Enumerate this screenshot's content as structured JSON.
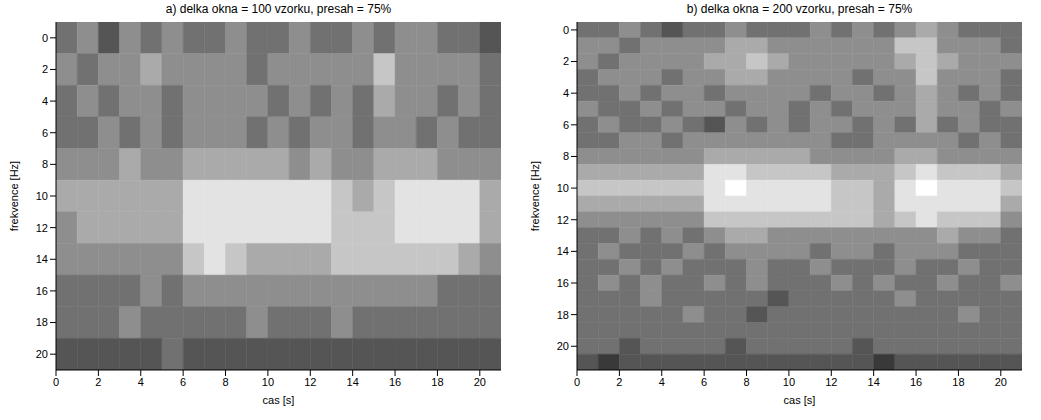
{
  "chart_data": [
    {
      "type": "heatmap",
      "title": "a) delka okna = 100 vzorku, presah = 75%",
      "x_label": "cas [s]",
      "y_label": "frekvence [Hz]",
      "xlim": [
        0,
        21
      ],
      "xticks": [
        0,
        2,
        4,
        6,
        8,
        10,
        12,
        14,
        16,
        18,
        20
      ],
      "ylim": [
        -1,
        21
      ],
      "yticks": [
        0,
        2,
        4,
        6,
        8,
        10,
        12,
        14,
        16,
        18,
        20
      ],
      "zlim": [
        0,
        9
      ],
      "x": [
        0.5,
        1.5,
        2.5,
        3.5,
        4.5,
        5.5,
        6.5,
        7.5,
        8.5,
        9.5,
        10.5,
        11.5,
        12.5,
        13.5,
        14.5,
        15.5,
        16.5,
        17.5,
        18.5,
        19.5,
        20.5
      ],
      "y": [
        0,
        2,
        4,
        6,
        8,
        10,
        12,
        14,
        16,
        18,
        20
      ],
      "cells": [
        [
          4,
          5,
          3,
          5,
          4,
          5,
          4,
          4,
          5,
          4,
          4,
          5,
          4,
          4,
          5,
          4,
          5,
          5,
          4,
          4,
          3
        ],
        [
          5,
          4,
          5,
          5,
          6,
          5,
          5,
          5,
          5,
          4,
          5,
          5,
          5,
          5,
          5,
          7,
          5,
          5,
          5,
          5,
          4
        ],
        [
          4,
          5,
          4,
          5,
          5,
          4,
          5,
          5,
          5,
          5,
          4,
          5,
          4,
          5,
          4,
          6,
          5,
          5,
          4,
          5,
          4
        ],
        [
          4,
          4,
          5,
          4,
          5,
          4,
          5,
          5,
          5,
          4,
          5,
          4,
          5,
          5,
          4,
          5,
          5,
          4,
          5,
          4,
          4
        ],
        [
          5,
          5,
          5,
          6,
          5,
          5,
          6,
          6,
          6,
          6,
          6,
          5,
          6,
          5,
          5,
          6,
          6,
          6,
          5,
          5,
          5
        ],
        [
          6,
          6,
          6,
          6,
          6,
          6,
          8,
          8,
          8,
          8,
          8,
          8,
          8,
          7,
          6,
          7,
          8,
          8,
          8,
          8,
          6
        ],
        [
          5,
          6,
          6,
          6,
          6,
          6,
          8,
          8,
          8,
          8,
          8,
          8,
          8,
          7,
          7,
          7,
          8,
          8,
          8,
          8,
          6
        ],
        [
          5,
          5,
          5,
          5,
          5,
          5,
          7,
          8,
          7,
          6,
          6,
          6,
          6,
          7,
          7,
          7,
          7,
          7,
          7,
          6,
          5
        ],
        [
          4,
          4,
          4,
          4,
          5,
          4,
          5,
          5,
          5,
          5,
          5,
          5,
          5,
          5,
          5,
          5,
          5,
          5,
          4,
          4,
          4
        ],
        [
          4,
          4,
          4,
          5,
          4,
          4,
          4,
          4,
          4,
          5,
          4,
          4,
          4,
          5,
          4,
          4,
          4,
          4,
          4,
          4,
          4
        ],
        [
          3,
          3,
          3,
          3,
          3,
          4,
          3,
          3,
          3,
          3,
          3,
          3,
          3,
          3,
          3,
          3,
          3,
          3,
          3,
          3,
          3
        ]
      ]
    },
    {
      "type": "heatmap",
      "title": "b) delka okna = 200 vzorku, presah = 75%",
      "x_label": "cas [s]",
      "y_label": "frekvence [Hz]",
      "xlim": [
        0,
        21
      ],
      "xticks": [
        0,
        2,
        4,
        6,
        8,
        10,
        12,
        14,
        16,
        18,
        20
      ],
      "ylim": [
        -0.5,
        21.5
      ],
      "yticks": [
        0,
        2,
        4,
        6,
        8,
        10,
        12,
        14,
        16,
        18,
        20
      ],
      "zlim": [
        0,
        9
      ],
      "x": [
        0.5,
        1.5,
        2.5,
        3.5,
        4.5,
        5.5,
        6.5,
        7.5,
        8.5,
        9.5,
        10.5,
        11.5,
        12.5,
        13.5,
        14.5,
        15.5,
        16.5,
        17.5,
        18.5,
        19.5,
        20.5
      ],
      "y": [
        0,
        1,
        2,
        3,
        4,
        5,
        6,
        7,
        8,
        9,
        10,
        11,
        12,
        13,
        14,
        15,
        16,
        17,
        18,
        19,
        20,
        21
      ],
      "cells": [
        [
          4,
          4,
          5,
          4,
          3,
          4,
          4,
          5,
          4,
          4,
          4,
          5,
          4,
          5,
          4,
          5,
          6,
          5,
          4,
          4,
          4
        ],
        [
          5,
          5,
          4,
          5,
          5,
          5,
          5,
          6,
          6,
          5,
          5,
          5,
          5,
          5,
          5,
          7,
          7,
          5,
          5,
          5,
          4
        ],
        [
          5,
          4,
          5,
          5,
          5,
          5,
          6,
          6,
          7,
          6,
          5,
          5,
          5,
          5,
          5,
          6,
          7,
          6,
          5,
          5,
          5
        ],
        [
          4,
          5,
          5,
          5,
          4,
          5,
          5,
          6,
          6,
          5,
          5,
          5,
          5,
          4,
          5,
          5,
          7,
          5,
          5,
          5,
          4
        ],
        [
          4,
          4,
          5,
          4,
          5,
          5,
          4,
          5,
          5,
          5,
          5,
          4,
          5,
          5,
          4,
          5,
          6,
          5,
          4,
          5,
          4
        ],
        [
          5,
          4,
          4,
          5,
          4,
          5,
          5,
          4,
          5,
          5,
          4,
          5,
          4,
          5,
          5,
          5,
          6,
          5,
          5,
          4,
          5
        ],
        [
          4,
          5,
          4,
          4,
          5,
          4,
          3,
          5,
          4,
          5,
          4,
          5,
          5,
          4,
          5,
          4,
          6,
          4,
          5,
          4,
          4
        ],
        [
          4,
          4,
          5,
          5,
          4,
          5,
          5,
          5,
          5,
          5,
          5,
          5,
          4,
          4,
          5,
          5,
          5,
          5,
          4,
          5,
          4
        ],
        [
          5,
          5,
          5,
          5,
          5,
          5,
          6,
          6,
          6,
          6,
          6,
          5,
          5,
          5,
          5,
          6,
          6,
          5,
          5,
          5,
          5
        ],
        [
          6,
          6,
          6,
          6,
          6,
          6,
          8,
          8,
          7,
          7,
          7,
          7,
          6,
          6,
          6,
          7,
          8,
          7,
          7,
          7,
          6
        ],
        [
          7,
          7,
          7,
          7,
          7,
          7,
          8,
          9,
          8,
          8,
          8,
          8,
          7,
          7,
          6,
          8,
          9,
          8,
          8,
          8,
          7
        ],
        [
          6,
          6,
          6,
          6,
          6,
          6,
          8,
          8,
          8,
          8,
          8,
          8,
          7,
          7,
          6,
          8,
          8,
          8,
          8,
          8,
          6
        ],
        [
          5,
          5,
          5,
          5,
          5,
          5,
          7,
          7,
          7,
          7,
          7,
          7,
          7,
          7,
          6,
          7,
          8,
          7,
          7,
          7,
          5
        ],
        [
          4,
          4,
          5,
          4,
          5,
          4,
          5,
          6,
          6,
          5,
          5,
          5,
          5,
          5,
          5,
          5,
          5,
          6,
          5,
          5,
          4
        ],
        [
          4,
          5,
          4,
          4,
          4,
          5,
          4,
          5,
          5,
          5,
          5,
          4,
          5,
          5,
          4,
          5,
          5,
          5,
          4,
          4,
          4
        ],
        [
          4,
          4,
          5,
          4,
          5,
          4,
          4,
          4,
          5,
          4,
          4,
          5,
          4,
          4,
          4,
          5,
          4,
          4,
          5,
          4,
          4
        ],
        [
          4,
          5,
          4,
          5,
          4,
          4,
          5,
          4,
          5,
          4,
          4,
          4,
          5,
          4,
          5,
          4,
          4,
          5,
          4,
          4,
          5
        ],
        [
          4,
          4,
          4,
          5,
          4,
          4,
          4,
          4,
          4,
          3,
          4,
          4,
          4,
          4,
          4,
          5,
          4,
          4,
          4,
          4,
          4
        ],
        [
          4,
          4,
          4,
          4,
          4,
          5,
          4,
          4,
          3,
          4,
          4,
          4,
          4,
          4,
          4,
          4,
          4,
          4,
          5,
          4,
          4
        ],
        [
          4,
          4,
          4,
          4,
          4,
          4,
          4,
          4,
          4,
          4,
          4,
          4,
          4,
          4,
          4,
          4,
          4,
          4,
          4,
          4,
          4
        ],
        [
          4,
          4,
          3,
          4,
          4,
          4,
          4,
          3,
          4,
          4,
          4,
          4,
          4,
          3,
          4,
          4,
          4,
          4,
          4,
          4,
          4
        ],
        [
          3,
          2,
          3,
          3,
          3,
          3,
          3,
          3,
          3,
          3,
          3,
          3,
          3,
          3,
          2,
          3,
          3,
          3,
          3,
          3,
          3
        ]
      ]
    }
  ]
}
